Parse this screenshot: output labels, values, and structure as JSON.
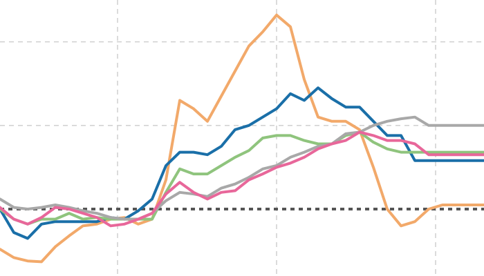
{
  "chart_data": {
    "type": "line",
    "title": "",
    "xlabel": "",
    "ylabel": "",
    "xlim": [
      0,
      70
    ],
    "ylim": [
      -0.8,
      2.5
    ],
    "baseline": 0,
    "grid": {
      "x": [
        17,
        40,
        63
      ],
      "y": [
        0,
        1,
        2
      ]
    },
    "x": [
      0,
      2,
      4,
      6,
      8,
      10,
      12,
      14,
      16,
      18,
      20,
      22,
      24,
      26,
      28,
      30,
      32,
      34,
      36,
      38,
      40,
      42,
      44,
      46,
      48,
      50,
      52,
      54,
      56,
      58,
      60,
      62,
      64,
      66,
      68,
      70
    ],
    "series": [
      {
        "color": "#f2a96a",
        "values": [
          -0.48,
          -0.58,
          -0.62,
          -0.63,
          -0.45,
          -0.32,
          -0.2,
          -0.18,
          -0.12,
          -0.1,
          -0.18,
          -0.12,
          0.35,
          1.3,
          1.2,
          1.05,
          1.35,
          1.65,
          1.95,
          2.12,
          2.32,
          2.18,
          1.55,
          1.1,
          1.05,
          1.05,
          0.95,
          0.5,
          0.0,
          -0.2,
          -0.15,
          0.0,
          0.05,
          0.05,
          0.05,
          0.05
        ]
      },
      {
        "color": "#1a6fa8",
        "values": [
          0.0,
          -0.28,
          -0.35,
          -0.18,
          -0.15,
          -0.15,
          -0.15,
          -0.15,
          -0.1,
          -0.12,
          -0.02,
          0.12,
          0.52,
          0.68,
          0.68,
          0.65,
          0.75,
          0.95,
          1.0,
          1.1,
          1.2,
          1.38,
          1.3,
          1.45,
          1.32,
          1.22,
          1.22,
          1.05,
          0.88,
          0.88,
          0.58,
          0.58,
          0.58,
          0.58,
          0.58,
          0.58
        ]
      },
      {
        "color": "#8fc47d",
        "values": [
          0.0,
          -0.12,
          -0.18,
          -0.12,
          -0.12,
          -0.05,
          -0.12,
          -0.1,
          -0.12,
          -0.12,
          -0.12,
          -0.12,
          0.2,
          0.48,
          0.42,
          0.42,
          0.52,
          0.62,
          0.7,
          0.85,
          0.88,
          0.88,
          0.82,
          0.78,
          0.78,
          0.88,
          0.92,
          0.8,
          0.72,
          0.68,
          0.68,
          0.68,
          0.68,
          0.68,
          0.68,
          0.68
        ]
      },
      {
        "color": "#a8a8a8",
        "values": [
          0.12,
          0.02,
          0.0,
          0.02,
          0.05,
          0.02,
          -0.02,
          -0.05,
          -0.1,
          -0.12,
          -0.12,
          -0.05,
          0.1,
          0.2,
          0.18,
          0.15,
          0.25,
          0.3,
          0.38,
          0.48,
          0.52,
          0.62,
          0.68,
          0.75,
          0.78,
          0.9,
          0.92,
          1.0,
          1.05,
          1.08,
          1.1,
          1.0,
          1.0,
          1.0,
          1.0,
          1.0
        ]
      },
      {
        "color": "#e8679a",
        "values": [
          0.02,
          -0.12,
          -0.18,
          -0.1,
          0.02,
          0.0,
          -0.05,
          -0.1,
          -0.2,
          -0.18,
          -0.12,
          -0.05,
          0.18,
          0.32,
          0.2,
          0.12,
          0.2,
          0.22,
          0.35,
          0.42,
          0.5,
          0.55,
          0.62,
          0.72,
          0.78,
          0.82,
          0.92,
          0.88,
          0.82,
          0.82,
          0.78,
          0.65,
          0.65,
          0.65,
          0.65,
          0.65
        ]
      }
    ]
  }
}
